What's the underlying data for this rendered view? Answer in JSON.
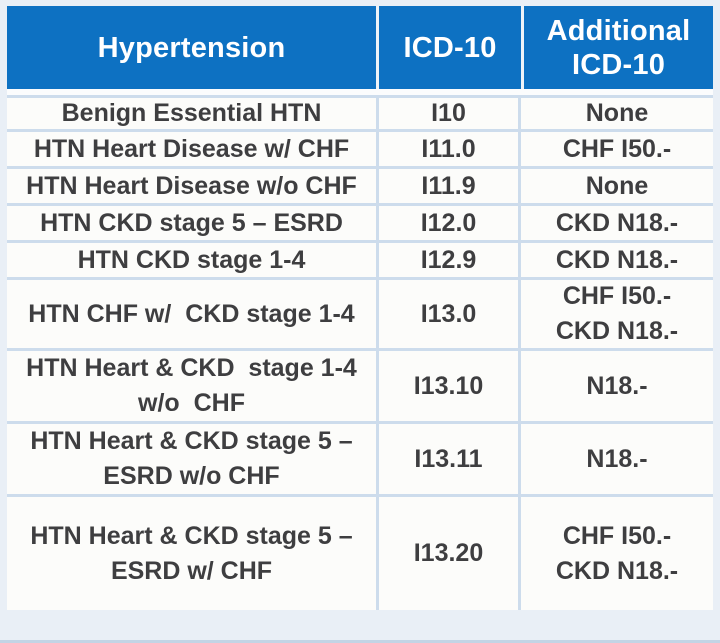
{
  "table": {
    "header": {
      "hypertension": "Hypertension",
      "icd10": "ICD-10",
      "additional_line1": "Additional",
      "additional_line2": "ICD-10"
    },
    "rows": [
      {
        "condition": [
          "Benign Essential HTN"
        ],
        "code": "I10",
        "additional": [
          "None"
        ]
      },
      {
        "condition": [
          "HTN Heart Disease w/ CHF"
        ],
        "code": "I11.0",
        "additional": [
          "CHF I50.-"
        ]
      },
      {
        "condition": [
          "HTN Heart Disease w/o CHF"
        ],
        "code": "I11.9",
        "additional": [
          "None"
        ]
      },
      {
        "condition": [
          "HTN CKD stage 5 – ESRD"
        ],
        "code": "I12.0",
        "additional": [
          "CKD N18.-"
        ]
      },
      {
        "condition": [
          "HTN CKD stage 1-4"
        ],
        "code": "I12.9",
        "additional": [
          "CKD N18.-"
        ]
      },
      {
        "condition": [
          "HTN CHF w/  CKD stage 1-4"
        ],
        "code": "I13.0",
        "additional": [
          "CHF I50.-",
          "CKD N18.-"
        ]
      },
      {
        "condition": [
          "HTN Heart & CKD  stage 1-4",
          "w/o  CHF"
        ],
        "code": "I13.10",
        "additional": [
          "N18.-"
        ]
      },
      {
        "condition": [
          "HTN Heart & CKD stage 5 –",
          "ESRD w/o CHF"
        ],
        "code": "I13.11",
        "additional": [
          "N18.-"
        ]
      },
      {
        "condition": [
          "HTN Heart & CKD stage 5 –",
          "ESRD w/ CHF"
        ],
        "code": "I13.20",
        "additional": [
          "CHF I50.-",
          "CKD N18.-"
        ]
      }
    ],
    "colors": {
      "header_bg": "#0d71c2",
      "header_text": "#ffffff",
      "body_bg": "#fcfcfa",
      "body_text": "#3e3e40",
      "separator": "#cddcec",
      "outer_frame": "#e9eff6",
      "bottom_edge": "#c3d4e5"
    }
  },
  "chart_data": {
    "type": "table",
    "title": "Hypertension ICD-10 coding",
    "columns": [
      "Hypertension",
      "ICD-10",
      "Additional ICD-10"
    ],
    "rows": [
      [
        "Benign Essential HTN",
        "I10",
        "None"
      ],
      [
        "HTN Heart Disease w/ CHF",
        "I11.0",
        "CHF I50.-"
      ],
      [
        "HTN Heart Disease w/o CHF",
        "I11.9",
        "None"
      ],
      [
        "HTN CKD stage 5 – ESRD",
        "I12.0",
        "CKD N18.-"
      ],
      [
        "HTN CKD stage 1-4",
        "I12.9",
        "CKD N18.-"
      ],
      [
        "HTN CHF w/ CKD stage 1-4",
        "I13.0",
        "CHF I50.- CKD N18.-"
      ],
      [
        "HTN Heart & CKD stage 1-4 w/o CHF",
        "I13.10",
        "N18.-"
      ],
      [
        "HTN Heart & CKD stage 5 – ESRD w/o CHF",
        "I13.11",
        "N18.-"
      ],
      [
        "HTN Heart & CKD stage 5 – ESRD w/ CHF",
        "I13.20",
        "CHF I50.- CKD N18.-"
      ]
    ]
  }
}
